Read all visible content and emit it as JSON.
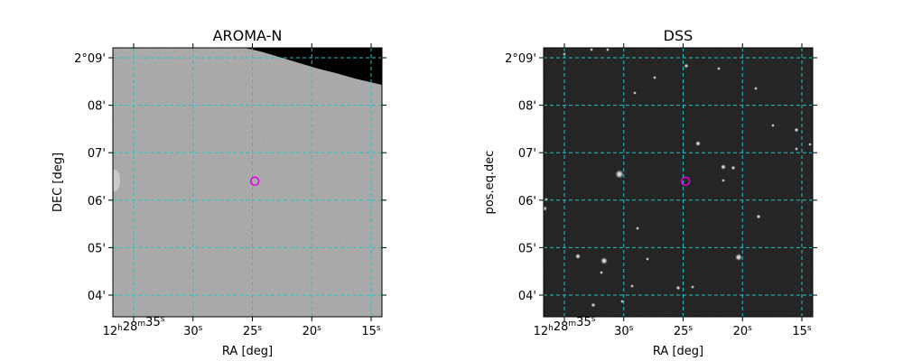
{
  "panels": [
    {
      "title": "AROMA-N",
      "xlabel": "RA [deg]",
      "ylabel": "DEC [deg]",
      "image_style": "gray-noise",
      "x_ticks": [
        {
          "ra_sec": 35,
          "major": "12",
          "major_unit": "h",
          "minor": "28",
          "minor_unit": "m",
          "sec": "35",
          "sec_unit": "s"
        },
        {
          "ra_sec": 30,
          "sec": "30",
          "sec_unit": "s"
        },
        {
          "ra_sec": 25,
          "sec": "25",
          "sec_unit": "s"
        },
        {
          "ra_sec": 20,
          "sec": "20",
          "sec_unit": "s"
        },
        {
          "ra_sec": 15,
          "sec": "15",
          "sec_unit": "s"
        }
      ],
      "y_ticks": [
        {
          "dec_arcmin": 9,
          "label": "2°09'"
        },
        {
          "dec_arcmin": 8,
          "label": "08'"
        },
        {
          "dec_arcmin": 7,
          "label": "07'"
        },
        {
          "dec_arcmin": 6,
          "label": "06'"
        },
        {
          "dec_arcmin": 5,
          "label": "05'"
        },
        {
          "dec_arcmin": 4,
          "label": "04'"
        }
      ],
      "marker": {
        "ra_sec": 24.8,
        "dec_arcmin": 6.4,
        "color": "#e000e0"
      }
    },
    {
      "title": "DSS",
      "xlabel": "RA [deg]",
      "ylabel": "pos.eq.dec",
      "image_style": "dark-starfield",
      "x_ticks": [
        {
          "ra_sec": 35,
          "major": "12",
          "major_unit": "h",
          "minor": "28",
          "minor_unit": "m",
          "sec": "35",
          "sec_unit": "s"
        },
        {
          "ra_sec": 30,
          "sec": "30",
          "sec_unit": "s"
        },
        {
          "ra_sec": 25,
          "sec": "25",
          "sec_unit": "s"
        },
        {
          "ra_sec": 20,
          "sec": "20",
          "sec_unit": "s"
        },
        {
          "ra_sec": 15,
          "sec": "15",
          "sec_unit": "s"
        }
      ],
      "y_ticks": [
        {
          "dec_arcmin": 9,
          "label": "2°09'"
        },
        {
          "dec_arcmin": 8,
          "label": "08'"
        },
        {
          "dec_arcmin": 7,
          "label": "07'"
        },
        {
          "dec_arcmin": 6,
          "label": "06'"
        },
        {
          "dec_arcmin": 5,
          "label": "05'"
        },
        {
          "dec_arcmin": 4,
          "label": "04'"
        }
      ],
      "marker": {
        "ra_sec": 24.8,
        "dec_arcmin": 6.4,
        "color": "#e000e0"
      }
    }
  ],
  "colors": {
    "grid": "#22c4c4",
    "marker": "#e000e0",
    "aroma_background": "#a6a6a6",
    "dss_background": "#1c1c1c",
    "missing_data": "#000000"
  }
}
